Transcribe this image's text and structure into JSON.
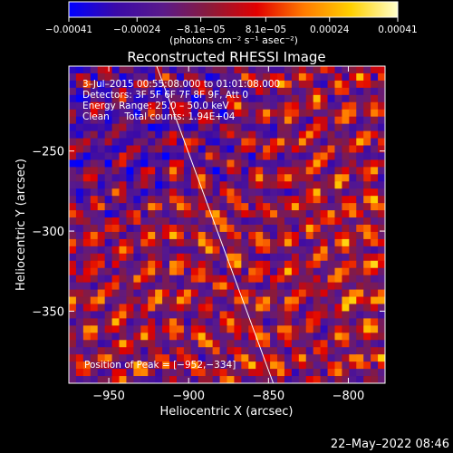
{
  "chart_data": {
    "type": "heatmap",
    "title": "Reconstructed RHESSI Image",
    "xlabel": "Heliocentric X (arcsec)",
    "ylabel": "Heliocentric Y (arcsec)",
    "xlim": [
      -975,
      -777
    ],
    "ylim": [
      -395,
      -197
    ],
    "x_ticks": [
      -950,
      -900,
      -850,
      -800
    ],
    "x_tick_labels": [
      "−950",
      "−900",
      "−850",
      "−800"
    ],
    "y_ticks": [
      -250,
      -300,
      -350
    ],
    "y_tick_labels": [
      "−250",
      "−300",
      "−350"
    ],
    "colorbar": {
      "range": [
        -0.00041,
        0.00041
      ],
      "ticks": [
        -0.00041,
        -0.00024,
        -8.1e-05,
        8.1e-05,
        0.00024,
        0.00041
      ],
      "tick_labels": [
        "−0.00041",
        "−0.00024",
        "−8.1e−05",
        "8.1e−05",
        "0.00024",
        "0.00041"
      ],
      "unit_label": "(photons cm⁻² s⁻¹ asec⁻²)",
      "colormap": [
        "#0000ff",
        "#3a0aa8",
        "#5a1a8a",
        "#8b1a3a",
        "#e10000",
        "#ff7a00",
        "#ffd000",
        "#ffffcc"
      ]
    },
    "annotations": [
      "3–Jul–2015 00:55:08.000 to 01:01:08.000",
      "Detectors: 3F 5F 6F 7F 8F 9F, Att 0",
      "Energy Range: 25.0 – 50.0 keV",
      "Clean     Total counts: 1.94E+04",
      "Position of Peak = [−952,−334]"
    ],
    "peak": [
      -952,
      -334
    ],
    "limb_line": [
      [
        -920,
        -197
      ],
      [
        -847,
        -395
      ]
    ],
    "grid": false
  },
  "footer": {
    "date_stamp": "22–May–2022 08:46"
  }
}
